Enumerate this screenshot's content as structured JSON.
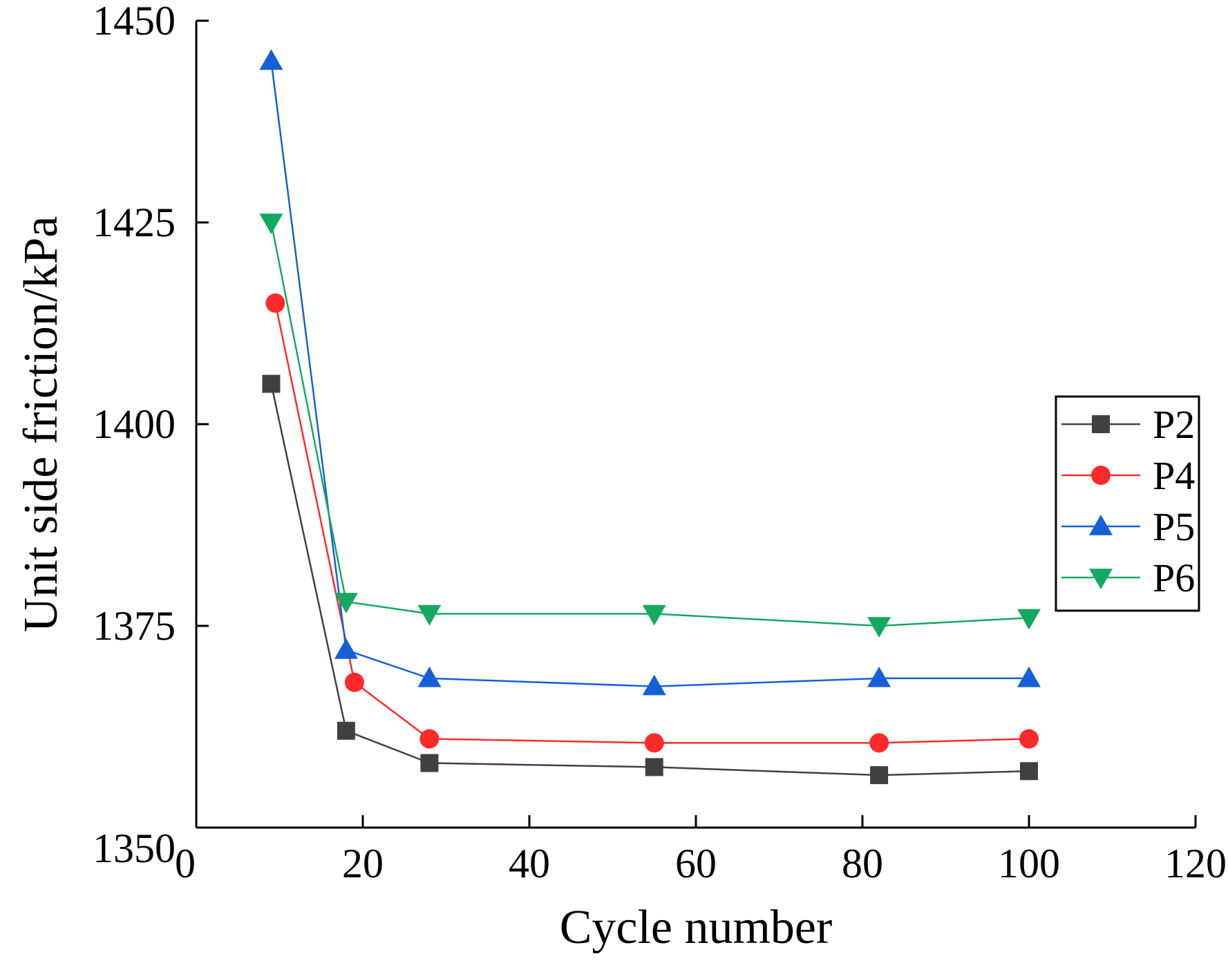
{
  "chart_data": {
    "type": "line",
    "title": "",
    "xlabel": "Cycle number",
    "ylabel": "Unit side friction/kPa",
    "xlim": [
      0,
      120
    ],
    "ylim": [
      1350,
      1450
    ],
    "xticks": [
      "0",
      "20",
      "40",
      "60",
      "80",
      "100",
      "120"
    ],
    "yticks": [
      "1350",
      "1375",
      "1400",
      "1425",
      "1450"
    ],
    "grid": false,
    "legend_position": "right",
    "series": [
      {
        "name": "P2",
        "color": "#404040",
        "marker": "square",
        "x": [
          9,
          18,
          28,
          55,
          82,
          100
        ],
        "values": [
          1405,
          1362,
          1358,
          1357.5,
          1356.5,
          1357
        ]
      },
      {
        "name": "P4",
        "color": "#ff2a2a",
        "marker": "circle",
        "x": [
          9.5,
          19,
          28,
          55,
          82,
          100
        ],
        "values": [
          1415,
          1368,
          1361,
          1360.5,
          1360.5,
          1361
        ]
      },
      {
        "name": "P5",
        "color": "#1560d8",
        "marker": "triangle-up",
        "x": [
          9,
          18,
          28,
          55,
          82,
          100
        ],
        "values": [
          1445,
          1372,
          1368.5,
          1367.5,
          1368.5,
          1368.5
        ]
      },
      {
        "name": "P6",
        "color": "#14a860",
        "marker": "triangle-down",
        "x": [
          9,
          18,
          28,
          55,
          82,
          100
        ],
        "values": [
          1425,
          1378,
          1376.5,
          1376.5,
          1375,
          1376
        ]
      }
    ]
  }
}
